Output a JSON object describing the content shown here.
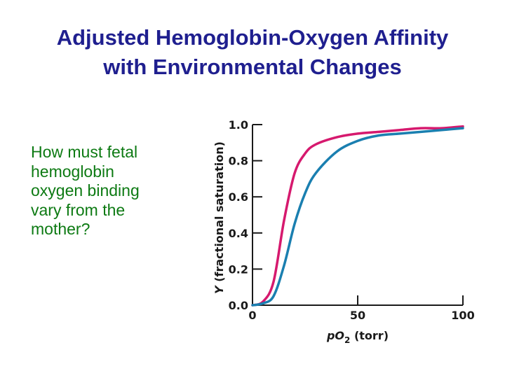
{
  "slide": {
    "title_line1": "Adjusted Hemoglobin-Oxygen Affinity",
    "title_line2": "with Environmental Changes",
    "question": "How must fetal\nhemoglobin\noxygen binding\nvary from the\nmother?"
  },
  "chart_data": {
    "type": "line",
    "xlabel": "pO2 (torr)",
    "ylabel": "Y (fractional saturation)",
    "xlim": [
      0,
      100
    ],
    "ylim": [
      0,
      1.0
    ],
    "x_ticks": [
      0,
      50,
      100
    ],
    "x_tick_labels": [
      "0",
      "50",
      "100"
    ],
    "y_ticks": [
      0,
      0.2,
      0.4,
      0.6,
      0.8,
      1.0
    ],
    "y_tick_labels": [
      "0.0",
      "0.2",
      "0.4",
      "0.6",
      "0.8",
      "1.0"
    ],
    "series": [
      {
        "color": "#d6196e",
        "x": [
          0,
          5,
          10,
          15,
          20,
          25,
          30,
          40,
          50,
          60,
          70,
          80,
          90,
          100
        ],
        "y": [
          0.0,
          0.02,
          0.13,
          0.47,
          0.73,
          0.84,
          0.89,
          0.93,
          0.95,
          0.96,
          0.97,
          0.98,
          0.98,
          0.99
        ]
      },
      {
        "color": "#1a7fb0",
        "x": [
          0,
          5,
          10,
          15,
          20,
          25,
          30,
          40,
          50,
          60,
          70,
          80,
          90,
          100
        ],
        "y": [
          0.0,
          0.01,
          0.05,
          0.22,
          0.45,
          0.62,
          0.73,
          0.85,
          0.91,
          0.94,
          0.95,
          0.96,
          0.97,
          0.98
        ]
      }
    ]
  }
}
